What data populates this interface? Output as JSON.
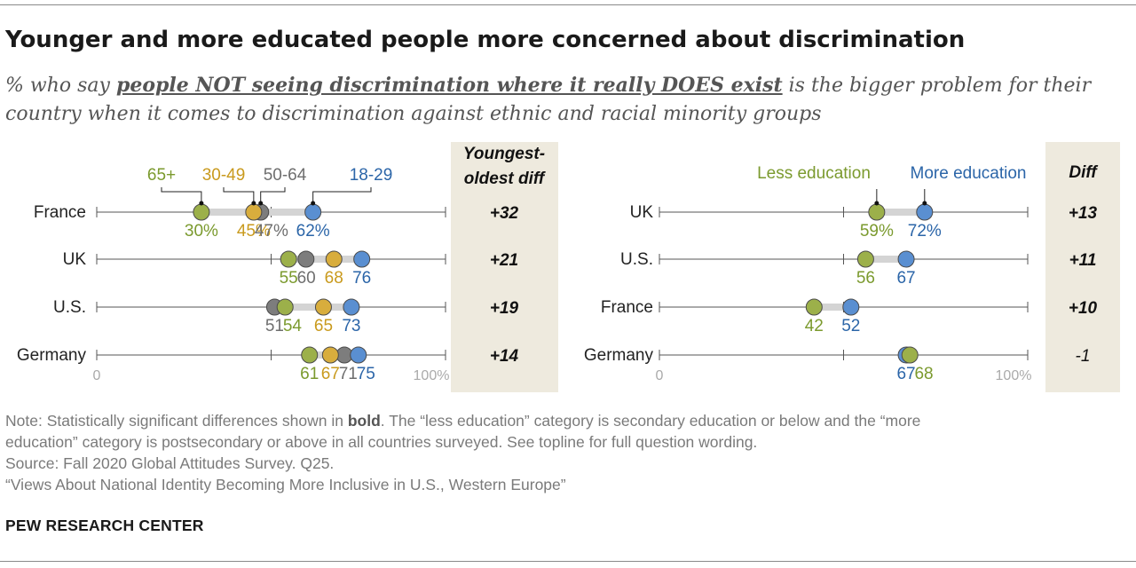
{
  "title": "Younger and more educated people more concerned about discrimination",
  "subtitle": {
    "prefix": "% who say ",
    "emphasis": "people NOT seeing discrimination where it really DOES exist",
    "suffix": " is the bigger problem for their country when it comes to discrimination against ethnic and racial minority groups"
  },
  "notes": {
    "note_prefix": "Note: Statistically significant differences shown in ",
    "note_bold": "bold",
    "note_suffix": ". The “less education” category is secondary education or below and the “more",
    "note_line2": "education” category is postsecondary or above in all countries surveyed. See topline for full question wording.",
    "source": "Source: Fall 2020 Global Attitudes Survey. Q25.",
    "report": "“Views About National Identity Becoming More Inclusive in U.S., Western Europe”"
  },
  "brand": "PEW RESEARCH CENTER",
  "colors": {
    "age_65plus": "#9cb04a",
    "age_30_49": "#d8ad3d",
    "age_50_64": "#7d7d7d",
    "age_18_29": "#5a8fd1",
    "less_education": "#9cb04a",
    "more_education": "#5a8fd1",
    "diff_column_bg": "#eeeade",
    "text_green": "#7b9a2e",
    "text_gold": "#c99a1d",
    "text_gray": "#6e6e6e",
    "text_blue": "#2b65a8"
  },
  "chart_data": [
    {
      "type": "dot-plot",
      "id": "age",
      "xlim": [
        0,
        100
      ],
      "axis_labels": [
        "0",
        "100%"
      ],
      "series": [
        {
          "key": "age_65plus",
          "name": "65+"
        },
        {
          "key": "age_30_49",
          "name": "30-49"
        },
        {
          "key": "age_50_64",
          "name": "50-64"
        },
        {
          "key": "age_18_29",
          "name": "18-29"
        }
      ],
      "draw_order": [
        "age_50_64",
        "age_30_49",
        "age_65plus",
        "age_18_29"
      ],
      "diff_header": [
        "Youngest-",
        "oldest diff"
      ],
      "rows": [
        {
          "country": "France",
          "values": {
            "age_65plus": 30,
            "age_30_49": 45,
            "age_50_64": 47,
            "age_18_29": 62
          },
          "labels": [
            "30%",
            "45%",
            "47%",
            "62%"
          ],
          "diff": "+32",
          "diff_bold": true
        },
        {
          "country": "UK",
          "values": {
            "age_65plus": 55,
            "age_30_49": 68,
            "age_50_64": 60,
            "age_18_29": 76
          },
          "labels": [
            "55",
            "60",
            "68",
            "76"
          ],
          "diff": "+21",
          "diff_bold": true
        },
        {
          "country": "U.S.",
          "values": {
            "age_65plus": 54,
            "age_30_49": 65,
            "age_50_64": 51,
            "age_18_29": 73
          },
          "labels": [
            "51",
            "54",
            "65",
            "73"
          ],
          "diff": "+19",
          "diff_bold": true
        },
        {
          "country": "Germany",
          "values": {
            "age_65plus": 61,
            "age_30_49": 67,
            "age_50_64": 71,
            "age_18_29": 75
          },
          "labels": [
            "61",
            "67",
            "71",
            "75"
          ],
          "diff": "+14",
          "diff_bold": true
        }
      ]
    },
    {
      "type": "dot-plot",
      "id": "education",
      "xlim": [
        0,
        100
      ],
      "axis_labels": [
        "0",
        "100%"
      ],
      "series": [
        {
          "key": "less_education",
          "name": "Less education"
        },
        {
          "key": "more_education",
          "name": "More education"
        }
      ],
      "draw_order": [
        "more_education",
        "less_education"
      ],
      "diff_header": [
        "Diff"
      ],
      "rows": [
        {
          "country": "UK",
          "values": {
            "less_education": 59,
            "more_education": 72
          },
          "labels": [
            "59%",
            "72%"
          ],
          "diff": "+13",
          "diff_bold": true
        },
        {
          "country": "U.S.",
          "values": {
            "less_education": 56,
            "more_education": 67
          },
          "labels": [
            "56",
            "67"
          ],
          "diff": "+11",
          "diff_bold": true
        },
        {
          "country": "France",
          "values": {
            "less_education": 42,
            "more_education": 52
          },
          "labels": [
            "42",
            "52"
          ],
          "diff": "+10",
          "diff_bold": true
        },
        {
          "country": "Germany",
          "values": {
            "less_education": 68,
            "more_education": 67
          },
          "labels": [
            "67",
            "68"
          ],
          "diff": "-1",
          "diff_bold": false
        }
      ]
    }
  ]
}
